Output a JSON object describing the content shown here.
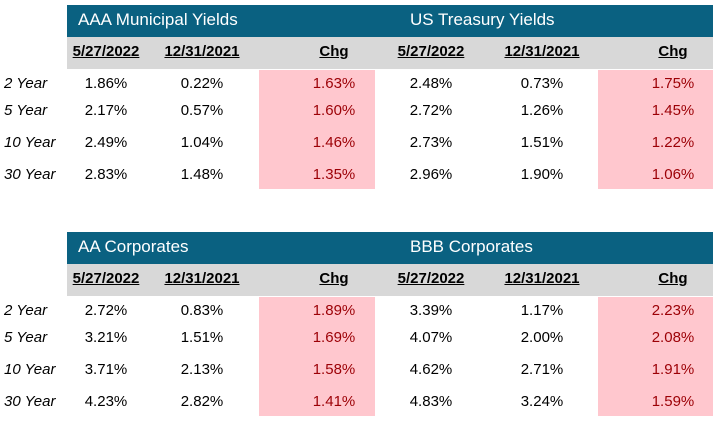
{
  "tables": [
    {
      "left_title": "AAA Municipal Yields",
      "right_title": "US Treasury Yields",
      "left_headers": [
        "5/27/2022",
        "12/31/2021",
        "Chg"
      ],
      "right_headers": [
        "5/27/2022",
        "12/31/2021",
        "Chg"
      ],
      "rows": [
        {
          "label": "2 Year",
          "l1": "1.86%",
          "l2": "0.22%",
          "lc": "1.63%",
          "r1": "2.48%",
          "r2": "0.73%",
          "rc": "1.75%"
        },
        {
          "label": "5 Year",
          "l1": "2.17%",
          "l2": "0.57%",
          "lc": "1.60%",
          "r1": "2.72%",
          "r2": "1.26%",
          "rc": "1.45%"
        },
        {
          "label": "10 Year",
          "l1": "2.49%",
          "l2": "1.04%",
          "lc": "1.46%",
          "r1": "2.73%",
          "r2": "1.51%",
          "rc": "1.22%"
        },
        {
          "label": "30 Year",
          "l1": "2.83%",
          "l2": "1.48%",
          "lc": "1.35%",
          "r1": "2.96%",
          "r2": "1.90%",
          "rc": "1.06%"
        }
      ]
    },
    {
      "left_title": "AA Corporates",
      "right_title": "BBB Corporates",
      "left_headers": [
        "5/27/2022",
        "12/31/2021",
        "Chg"
      ],
      "right_headers": [
        "5/27/2022",
        "12/31/2021",
        "Chg"
      ],
      "rows": [
        {
          "label": "2 Year",
          "l1": "2.72%",
          "l2": "0.83%",
          "lc": "1.89%",
          "r1": "3.39%",
          "r2": "1.17%",
          "rc": "2.23%"
        },
        {
          "label": "5 Year",
          "l1": "3.21%",
          "l2": "1.51%",
          "lc": "1.69%",
          "r1": "4.07%",
          "r2": "2.00%",
          "rc": "2.08%"
        },
        {
          "label": "10 Year",
          "l1": "3.71%",
          "l2": "2.13%",
          "lc": "1.58%",
          "r1": "4.62%",
          "r2": "2.71%",
          "rc": "1.91%"
        },
        {
          "label": "30 Year",
          "l1": "4.23%",
          "l2": "2.82%",
          "lc": "1.41%",
          "r1": "4.83%",
          "r2": "3.24%",
          "rc": "1.59%"
        }
      ]
    }
  ],
  "colors": {
    "title_band": "#0a6181",
    "header_band": "#d8d8d8",
    "change_fill": "#ffc7ce",
    "change_text": "#9c0006"
  }
}
